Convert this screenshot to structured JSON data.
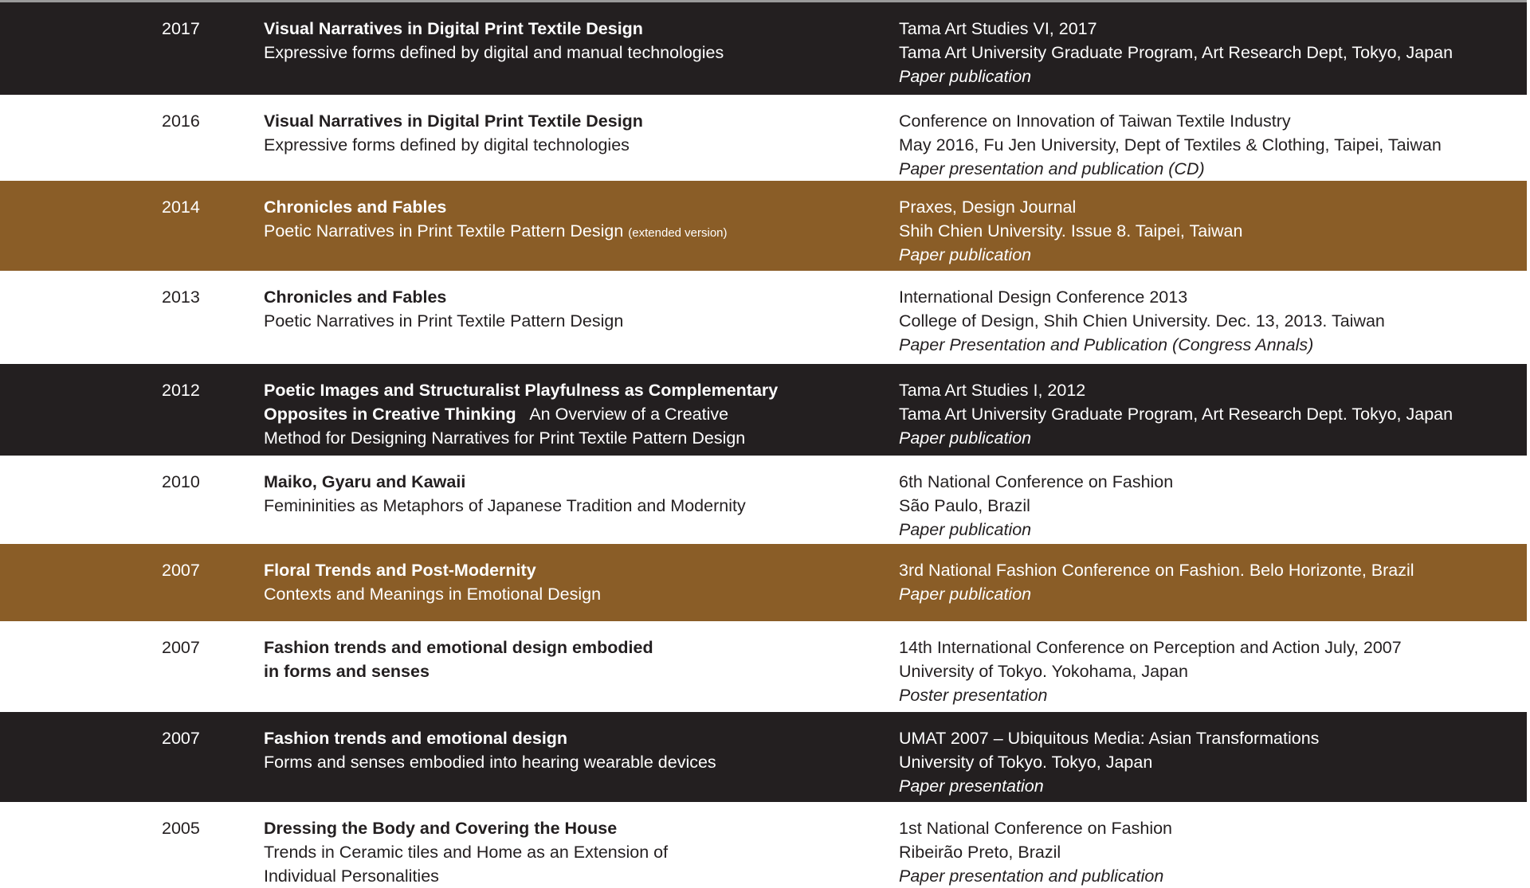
{
  "colors": {
    "dark": "#231f20",
    "brown": "#8a5d27",
    "light": "#ffffff"
  },
  "rows": [
    {
      "style": "dark",
      "year": "2017",
      "left": [
        [
          {
            "t": "Visual Narratives in Digital Print Textile Design",
            "s": "b"
          }
        ],
        [
          {
            "t": "Expressive forms defined by digital and manual technologies"
          }
        ]
      ],
      "right": [
        {
          "t": "Tama Art Studies VI, 2017"
        },
        {
          "t": "Tama Art University Graduate Program, Art Research Dept, Tokyo, Japan"
        },
        {
          "t": "Paper publication",
          "s": "i"
        }
      ]
    },
    {
      "style": "light",
      "year": "2016",
      "left": [
        [
          {
            "t": "Visual Narratives in Digital Print Textile Design",
            "s": "b"
          }
        ],
        [
          {
            "t": "Expressive forms defined by digital technologies"
          }
        ]
      ],
      "right": [
        {
          "t": "Conference on Innovation of Taiwan Textile Industry"
        },
        {
          "t": "May 2016, Fu Jen University, Dept of Textiles & Clothing, Taipei, Taiwan"
        },
        {
          "t": "Paper presentation and publication (CD)",
          "s": "i"
        }
      ]
    },
    {
      "style": "brown",
      "year": "2014",
      "left": [
        [
          {
            "t": "Chronicles and Fables",
            "s": "b"
          }
        ],
        [
          {
            "t": "Poetic Narratives in Print Textile Pattern Design "
          },
          {
            "t": "(extended version)",
            "s": "small"
          }
        ]
      ],
      "right": [
        {
          "t": "Praxes, Design Journal"
        },
        {
          "t": "Shih Chien University. Issue 8. Taipei, Taiwan"
        },
        {
          "t": "Paper publication",
          "s": "i"
        }
      ]
    },
    {
      "style": "light",
      "year": "2013",
      "left": [
        [
          {
            "t": "Chronicles and Fables",
            "s": "b"
          }
        ],
        [
          {
            "t": "Poetic Narratives in Print Textile Pattern Design"
          }
        ]
      ],
      "right": [
        {
          "t": "International Design Conference 2013"
        },
        {
          "t": "College of Design, Shih Chien University. Dec. 13, 2013. Taiwan"
        },
        {
          "t": "Paper Presentation and Publication (Congress Annals)",
          "s": "i"
        }
      ]
    },
    {
      "style": "dark",
      "year": "2012",
      "left": [
        [
          {
            "t": "Poetic Images and Structuralist Playfulness as Complementary",
            "s": "b"
          }
        ],
        [
          {
            "t": "Opposites in Creative Thinking",
            "s": "b"
          },
          {
            "t": "   An Overview of a Creative"
          }
        ],
        [
          {
            "t": "Method for Designing Narratives for Print Textile Pattern Design"
          }
        ]
      ],
      "right": [
        {
          "t": "Tama Art Studies I, 2012"
        },
        {
          "t": "Tama Art University Graduate Program, Art Research Dept. Tokyo, Japan"
        },
        {
          "t": "Paper publication",
          "s": "i"
        }
      ]
    },
    {
      "style": "light",
      "year": "2010",
      "left": [
        [
          {
            "t": "Maiko, Gyaru and Kawaii",
            "s": "b"
          }
        ],
        [
          {
            "t": "Femininities as Metaphors of Japanese Tradition and Modernity"
          }
        ]
      ],
      "right": [
        {
          "t": "6th National Conference on Fashion"
        },
        {
          "t": "São Paulo, Brazil"
        },
        {
          "t": "Paper publication",
          "s": "i"
        }
      ]
    },
    {
      "style": "brown",
      "year": "2007",
      "left": [
        [
          {
            "t": "Floral Trends and Post-Modernity",
            "s": "b"
          }
        ],
        [
          {
            "t": "Contexts and Meanings in Emotional Design"
          }
        ]
      ],
      "right": [
        {
          "t": "3rd National Fashion Conference on Fashion. Belo Horizonte, Brazil"
        },
        {
          "t": "Paper publication",
          "s": "i"
        }
      ]
    },
    {
      "style": "light",
      "year": "2007",
      "left": [
        [
          {
            "t": "Fashion trends and emotional design embodied",
            "s": "b"
          }
        ],
        [
          {
            "t": "in forms and senses",
            "s": "b"
          }
        ]
      ],
      "right": [
        {
          "t": "14th International Conference on Perception and Action July, 2007"
        },
        {
          "t": "University of Tokyo. Yokohama, Japan"
        },
        {
          "t": "Poster presentation",
          "s": "i"
        }
      ]
    },
    {
      "style": "dark",
      "year": "2007",
      "left": [
        [
          {
            "t": "Fashion trends and emotional design",
            "s": "b"
          }
        ],
        [
          {
            "t": "Forms and senses embodied into hearing wearable devices"
          }
        ]
      ],
      "right": [
        {
          "t": "UMAT 2007 – Ubiquitous Media: Asian Transformations"
        },
        {
          "t": "University of Tokyo. Tokyo, Japan"
        },
        {
          "t": "Paper presentation",
          "s": "i"
        }
      ]
    },
    {
      "style": "light",
      "year": "2005",
      "left": [
        [
          {
            "t": "Dressing the Body and Covering the House",
            "s": "b"
          }
        ],
        [
          {
            "t": "Trends in Ceramic tiles and Home as an Extension of"
          }
        ],
        [
          {
            "t": "Individual Personalities"
          }
        ]
      ],
      "right": [
        {
          "t": "1st National Conference on Fashion"
        },
        {
          "t": "Ribeirão Preto, Brazil"
        },
        {
          "t": "Paper presentation and publication",
          "s": "i"
        }
      ]
    }
  ]
}
